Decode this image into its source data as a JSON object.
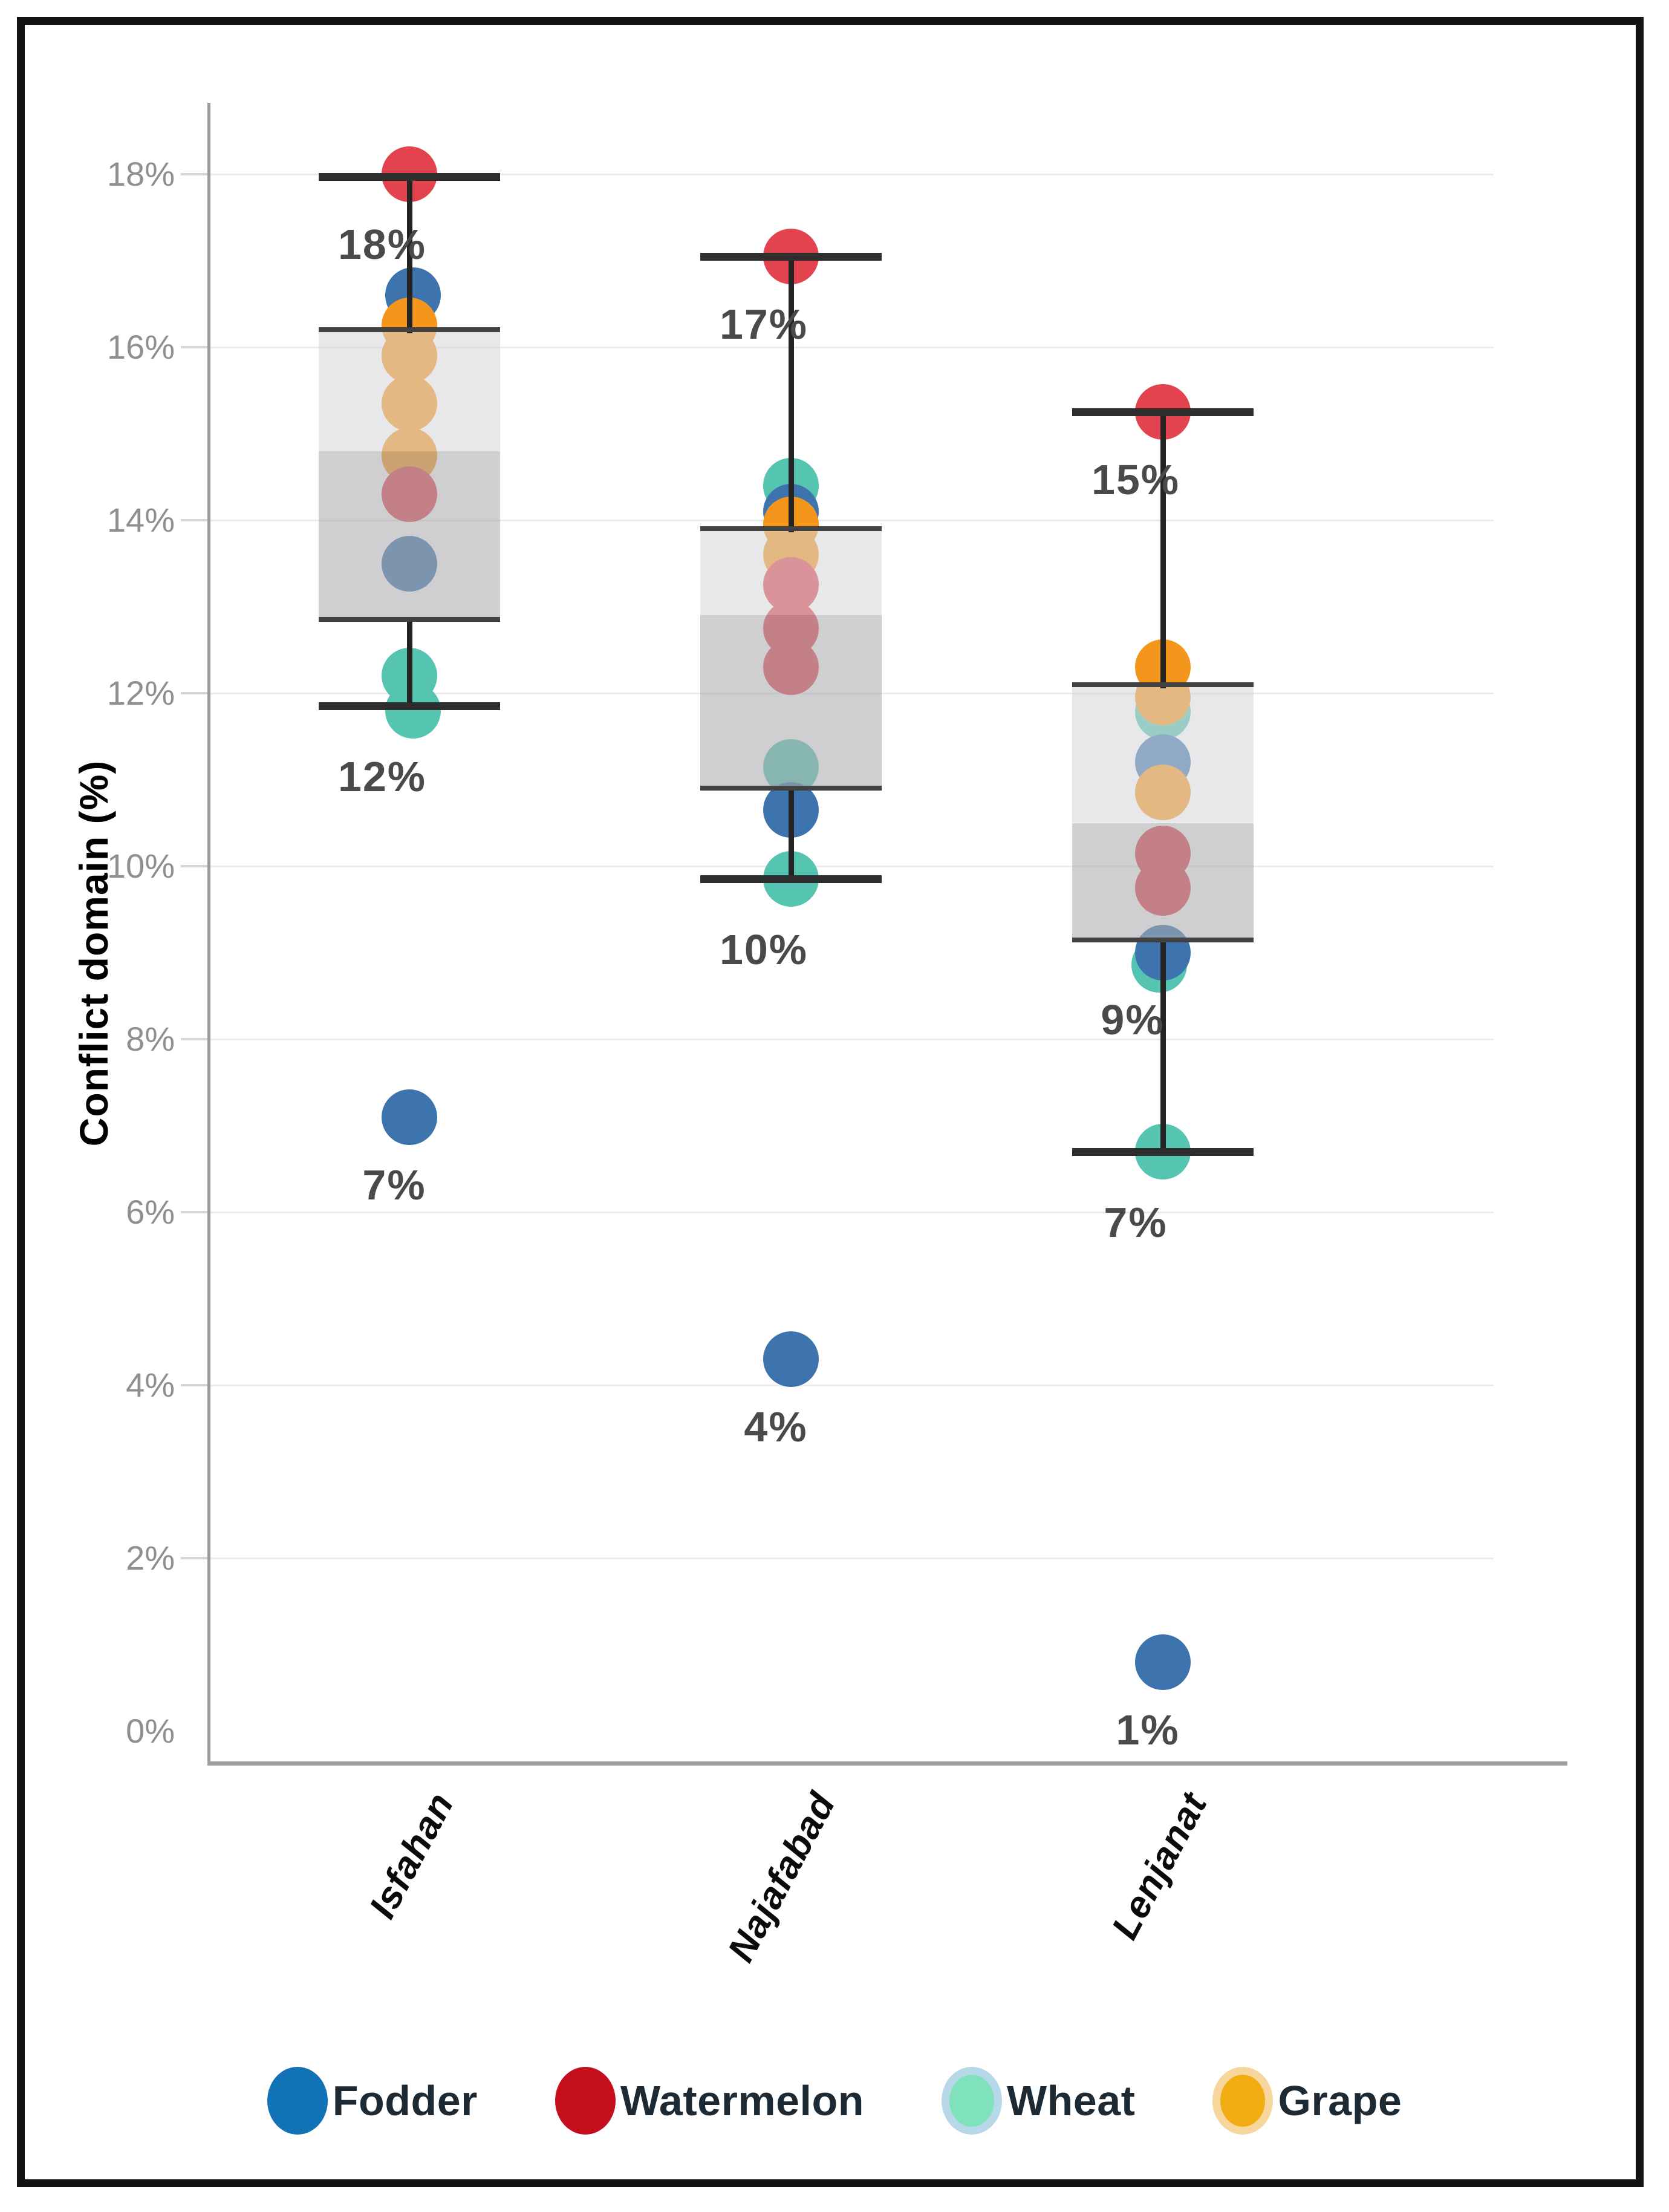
{
  "chart_data": {
    "type": "box-jitter",
    "title": "",
    "ylabel": "Conflict domain (%)",
    "xlabel": "",
    "ylim": [
      0,
      19
    ],
    "grid": "horizontal",
    "legend_position": "bottom",
    "yticks": [
      "0%",
      "2%",
      "4%",
      "6%",
      "8%",
      "10%",
      "12%",
      "14%",
      "16%",
      "18%"
    ],
    "ytick_values": [
      0,
      2,
      4,
      6,
      8,
      10,
      12,
      14,
      16,
      18
    ],
    "categories": [
      "Isfahan",
      "Najafabad",
      "Lenjanat"
    ],
    "crop_colors": {
      "Fodder": "#3d74ae",
      "Watermelon": "#e2434f",
      "Wheat": "#55c4b0",
      "Grape": "#f3961b"
    },
    "legend": [
      {
        "label": "Fodder",
        "fill": "#1272b6",
        "ring": ""
      },
      {
        "label": "Watermelon",
        "fill": "#c50f1c",
        "ring": ""
      },
      {
        "label": "Wheat",
        "fill": "#80e1bd",
        "ring": "#b7d8e9"
      },
      {
        "label": "Grape",
        "fill": "#f0ac10",
        "ring": "#f7d69b"
      }
    ],
    "boxes": [
      {
        "category": "Isfahan",
        "whisker_high": 17.97,
        "q3": 16.2,
        "median": 14.8,
        "q1": 12.85,
        "whisker_low": 11.85,
        "annotations": [
          {
            "text": "18%",
            "anchor": "high"
          },
          {
            "text": "12%",
            "anchor": "low"
          },
          {
            "text": "7%",
            "anchor": "point",
            "value": 7.1
          }
        ]
      },
      {
        "category": "Najafabad",
        "whisker_high": 17.05,
        "q3": 13.9,
        "median": 12.9,
        "q1": 10.9,
        "whisker_low": 9.85,
        "annotations": [
          {
            "text": "17%",
            "anchor": "high"
          },
          {
            "text": "10%",
            "anchor": "low"
          },
          {
            "text": "4%",
            "anchor": "point",
            "value": 4.3
          }
        ]
      },
      {
        "category": "Lenjanat",
        "whisker_high": 15.25,
        "q3": 12.1,
        "median": 10.5,
        "q1": 9.15,
        "whisker_low": 6.7,
        "annotations": [
          {
            "text": "15%",
            "anchor": "high"
          },
          {
            "text": "9%",
            "anchor": "q1"
          },
          {
            "text": "7%",
            "anchor": "low"
          },
          {
            "text": "1%",
            "anchor": "point",
            "value": 0.8
          }
        ]
      }
    ],
    "points": [
      {
        "category": "Isfahan",
        "crop": "Watermelon",
        "value": 18.0
      },
      {
        "category": "Isfahan",
        "crop": "Fodder",
        "value": 16.6,
        "dx": 6
      },
      {
        "category": "Isfahan",
        "crop": "Grape",
        "value": 16.25
      },
      {
        "category": "Isfahan",
        "crop": "Grape",
        "value": 15.9
      },
      {
        "category": "Isfahan",
        "crop": "Grape",
        "value": 15.35
      },
      {
        "category": "Isfahan",
        "crop": "Grape",
        "value": 14.75
      },
      {
        "category": "Isfahan",
        "crop": "Watermelon",
        "value": 14.3
      },
      {
        "category": "Isfahan",
        "crop": "Fodder",
        "value": 13.5
      },
      {
        "category": "Isfahan",
        "crop": "Wheat",
        "value": 12.2
      },
      {
        "category": "Isfahan",
        "crop": "Wheat",
        "value": 11.8,
        "dx": 6
      },
      {
        "category": "Isfahan",
        "crop": "Fodder",
        "value": 7.1
      },
      {
        "category": "Najafabad",
        "crop": "Watermelon",
        "value": 17.05
      },
      {
        "category": "Najafabad",
        "crop": "Wheat",
        "value": 14.4
      },
      {
        "category": "Najafabad",
        "crop": "Fodder",
        "value": 14.1
      },
      {
        "category": "Najafabad",
        "crop": "Grape",
        "value": 13.95
      },
      {
        "category": "Najafabad",
        "crop": "Grape",
        "value": 13.6
      },
      {
        "category": "Najafabad",
        "crop": "Watermelon",
        "value": 13.25
      },
      {
        "category": "Najafabad",
        "crop": "Watermelon",
        "value": 12.75
      },
      {
        "category": "Najafabad",
        "crop": "Watermelon",
        "value": 12.3
      },
      {
        "category": "Najafabad",
        "crop": "Wheat",
        "value": 11.15
      },
      {
        "category": "Najafabad",
        "crop": "Fodder",
        "value": 10.65
      },
      {
        "category": "Najafabad",
        "crop": "Wheat",
        "value": 9.85
      },
      {
        "category": "Najafabad",
        "crop": "Fodder",
        "value": 4.3
      },
      {
        "category": "Lenjanat",
        "crop": "Watermelon",
        "value": 15.25
      },
      {
        "category": "Lenjanat",
        "crop": "Grape",
        "value": 12.3
      },
      {
        "category": "Lenjanat",
        "crop": "Wheat",
        "value": 11.78
      },
      {
        "category": "Lenjanat",
        "crop": "Grape",
        "value": 11.95
      },
      {
        "category": "Lenjanat",
        "crop": "Fodder",
        "value": 11.2
      },
      {
        "category": "Lenjanat",
        "crop": "Grape",
        "value": 10.85
      },
      {
        "category": "Lenjanat",
        "crop": "Watermelon",
        "value": 10.15
      },
      {
        "category": "Lenjanat",
        "crop": "Watermelon",
        "value": 9.75
      },
      {
        "category": "Lenjanat",
        "crop": "Wheat",
        "value": 8.86,
        "dx": -6
      },
      {
        "category": "Lenjanat",
        "crop": "Fodder",
        "value": 9.0
      },
      {
        "category": "Lenjanat",
        "crop": "Wheat",
        "value": 6.7
      },
      {
        "category": "Lenjanat",
        "crop": "Fodder",
        "value": 0.8
      }
    ],
    "colors": {
      "frame": "#131313",
      "grid": "#ededee",
      "axis": "#9a9a9a",
      "box_edge": "#424242",
      "whisker": "#232323",
      "annotation_text": "#4a4a4a",
      "tick_text": "#8f8f8f",
      "legend_text": "#1d2a33"
    }
  }
}
